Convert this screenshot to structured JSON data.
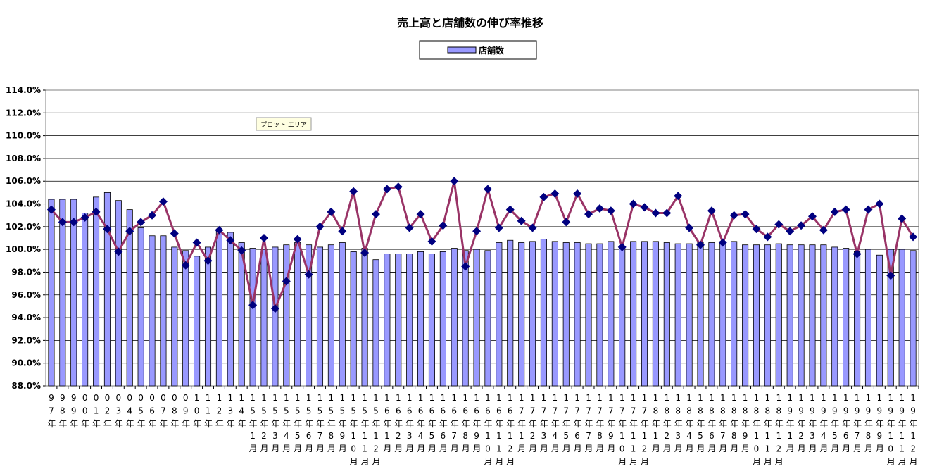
{
  "chart_data": {
    "type": "bar_line",
    "title": "売上高と店舗数の伸び率推移",
    "annotation": "プロット エリア",
    "categories": [
      "97年",
      "98年",
      "99年",
      "00年",
      "01年",
      "02年",
      "03年",
      "04年",
      "05年",
      "06年",
      "07年",
      "08年",
      "09年",
      "10年",
      "11年",
      "12年",
      "13年",
      "14年",
      "15年1月",
      "15年2月",
      "15年3月",
      "15年4月",
      "15年5月",
      "15年6月",
      "15年7月",
      "15年8月",
      "15年9月",
      "15年10月",
      "15年11月",
      "15年12月",
      "16年1月",
      "16年2月",
      "16年3月",
      "16年4月",
      "16年5月",
      "16年6月",
      "16年7月",
      "16年8月",
      "16年9月",
      "16年10月",
      "16年11月",
      "16年12月",
      "17年1月",
      "17年2月",
      "17年3月",
      "17年4月",
      "17年5月",
      "17年6月",
      "17年7月",
      "17年8月",
      "17年9月",
      "17年10月",
      "17年11月",
      "17年12月",
      "18年1月",
      "18年2月",
      "18年3月",
      "18年4月",
      "18年5月",
      "18年6月",
      "18年7月",
      "18年8月",
      "18年9月",
      "18年10月",
      "18年11月",
      "18年12月",
      "19年1月",
      "19年2月",
      "19年3月",
      "19年4月",
      "19年5月",
      "19年6月",
      "19年7月",
      "19年8月",
      "19年9月",
      "19年10月",
      "19年11月",
      "19年12月"
    ],
    "series": [
      {
        "name": "店舗数",
        "type": "bar",
        "color": "#9999ff",
        "values": [
          104.4,
          104.4,
          104.4,
          103.2,
          104.6,
          105.0,
          104.3,
          103.5,
          101.9,
          101.2,
          101.2,
          100.2,
          99.9,
          99.4,
          100.2,
          101.7,
          101.5,
          100.6,
          100.1,
          100.0,
          100.2,
          100.4,
          100.6,
          100.4,
          100.2,
          100.4,
          100.6,
          99.8,
          100.1,
          99.1,
          99.6,
          99.6,
          99.6,
          99.8,
          99.6,
          99.8,
          100.1,
          99.9,
          100.0,
          99.9,
          100.6,
          100.8,
          100.6,
          100.7,
          100.9,
          100.7,
          100.6,
          100.6,
          100.5,
          100.5,
          100.7,
          100.2,
          100.7,
          100.7,
          100.7,
          100.6,
          100.5,
          100.5,
          100.6,
          100.6,
          100.7,
          100.7,
          100.4,
          100.4,
          100.4,
          100.5,
          100.4,
          100.4,
          100.4,
          100.4,
          100.2,
          100.1,
          99.8,
          100.0,
          99.5,
          100.0,
          100.0,
          99.9
        ]
      },
      {
        "type": "line",
        "color": "#993366",
        "marker_color": "#000080",
        "values": [
          103.5,
          102.4,
          102.4,
          102.8,
          103.3,
          101.8,
          99.8,
          101.6,
          102.4,
          103.0,
          104.2,
          101.4,
          98.6,
          100.6,
          99.0,
          101.7,
          100.8,
          99.9,
          95.1,
          101.0,
          94.8,
          97.2,
          100.9,
          97.8,
          102.0,
          103.3,
          101.6,
          105.1,
          99.7,
          103.1,
          105.3,
          105.5,
          101.9,
          103.1,
          100.7,
          102.1,
          106.0,
          98.5,
          101.6,
          105.3,
          101.9,
          103.5,
          102.5,
          101.9,
          104.6,
          104.9,
          102.4,
          104.9,
          103.1,
          103.6,
          103.4,
          100.2,
          104.0,
          103.7,
          103.2,
          103.2,
          104.7,
          101.9,
          100.4,
          103.4,
          100.6,
          103.0,
          103.1,
          101.8,
          101.1,
          102.2,
          101.6,
          102.1,
          102.9,
          101.7,
          103.3,
          103.5,
          99.6,
          103.5,
          104.0,
          97.7,
          102.7,
          101.1
        ]
      }
    ],
    "ylim": [
      88,
      114
    ],
    "yticks": [
      {
        "value": 88,
        "label": "88.0%"
      },
      {
        "value": 90,
        "label": "90.0%"
      },
      {
        "value": 92,
        "label": "92.0%"
      },
      {
        "value": 94,
        "label": "94.0%"
      },
      {
        "value": 96,
        "label": "96.0%"
      },
      {
        "value": 98,
        "label": "98.0%"
      },
      {
        "value": 100,
        "label": "100.0%"
      },
      {
        "value": 102,
        "label": "102.0%"
      },
      {
        "value": 104,
        "label": "104.0%"
      },
      {
        "value": 106,
        "label": "106.0%"
      },
      {
        "value": 108,
        "label": "108.0%"
      },
      {
        "value": 110,
        "label": "110.0%"
      },
      {
        "value": 112,
        "label": "112.0%"
      },
      {
        "value": 114,
        "label": "114.0%"
      }
    ],
    "grid": true,
    "legend": "top"
  }
}
